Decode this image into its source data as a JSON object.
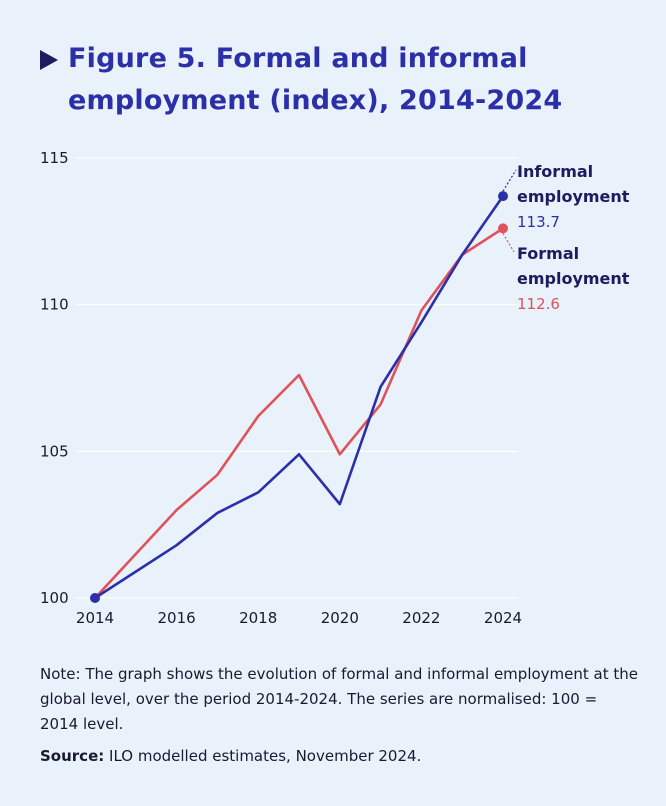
{
  "figure": {
    "title_line1": "Figure 5. Formal and informal",
    "title_line2": "employment (index), 2014-2024",
    "note": "Note: The graph shows the evolution of formal and informal employment at the global level, over the period 2014-2024. The series are normalised: 100 = 2014 level.",
    "source_label": "Source:",
    "source_text": " ILO modelled estimates, November 2024."
  },
  "colors": {
    "background": "#e9f1fb",
    "formal": "#e0525a",
    "informal": "#2b2fa8",
    "title": "#2b2fa8",
    "label_name": "#1e1b5e",
    "grid": "#ffffff"
  },
  "chart_data": {
    "type": "line",
    "title": "Figure 5. Formal and informal employment (index), 2014-2024",
    "xlabel": "",
    "ylabel": "",
    "x": [
      2014,
      2015,
      2016,
      2017,
      2018,
      2019,
      2020,
      2021,
      2022,
      2023,
      2024
    ],
    "xticks": [
      2014,
      2016,
      2018,
      2020,
      2022,
      2024
    ],
    "yticks": [
      100,
      105,
      110,
      115
    ],
    "ylim": [
      100,
      115
    ],
    "xlim": [
      2014,
      2024
    ],
    "grid": "horizontal",
    "series": [
      {
        "name": "Formal employment",
        "color": "#e0525a",
        "values": [
          100.0,
          101.5,
          103.0,
          104.2,
          106.2,
          107.6,
          104.9,
          106.6,
          109.8,
          111.7,
          112.6
        ],
        "end_label": "112.6"
      },
      {
        "name": "Informal employment",
        "color": "#2b2fa8",
        "values": [
          100.0,
          100.9,
          101.8,
          102.9,
          103.6,
          104.9,
          103.2,
          107.2,
          109.4,
          111.7,
          113.7
        ],
        "end_label": "113.7"
      }
    ],
    "labels": {
      "informal_line1": "Informal",
      "informal_line2": "employment",
      "formal_line1": "Formal",
      "formal_line2": "employment"
    }
  }
}
